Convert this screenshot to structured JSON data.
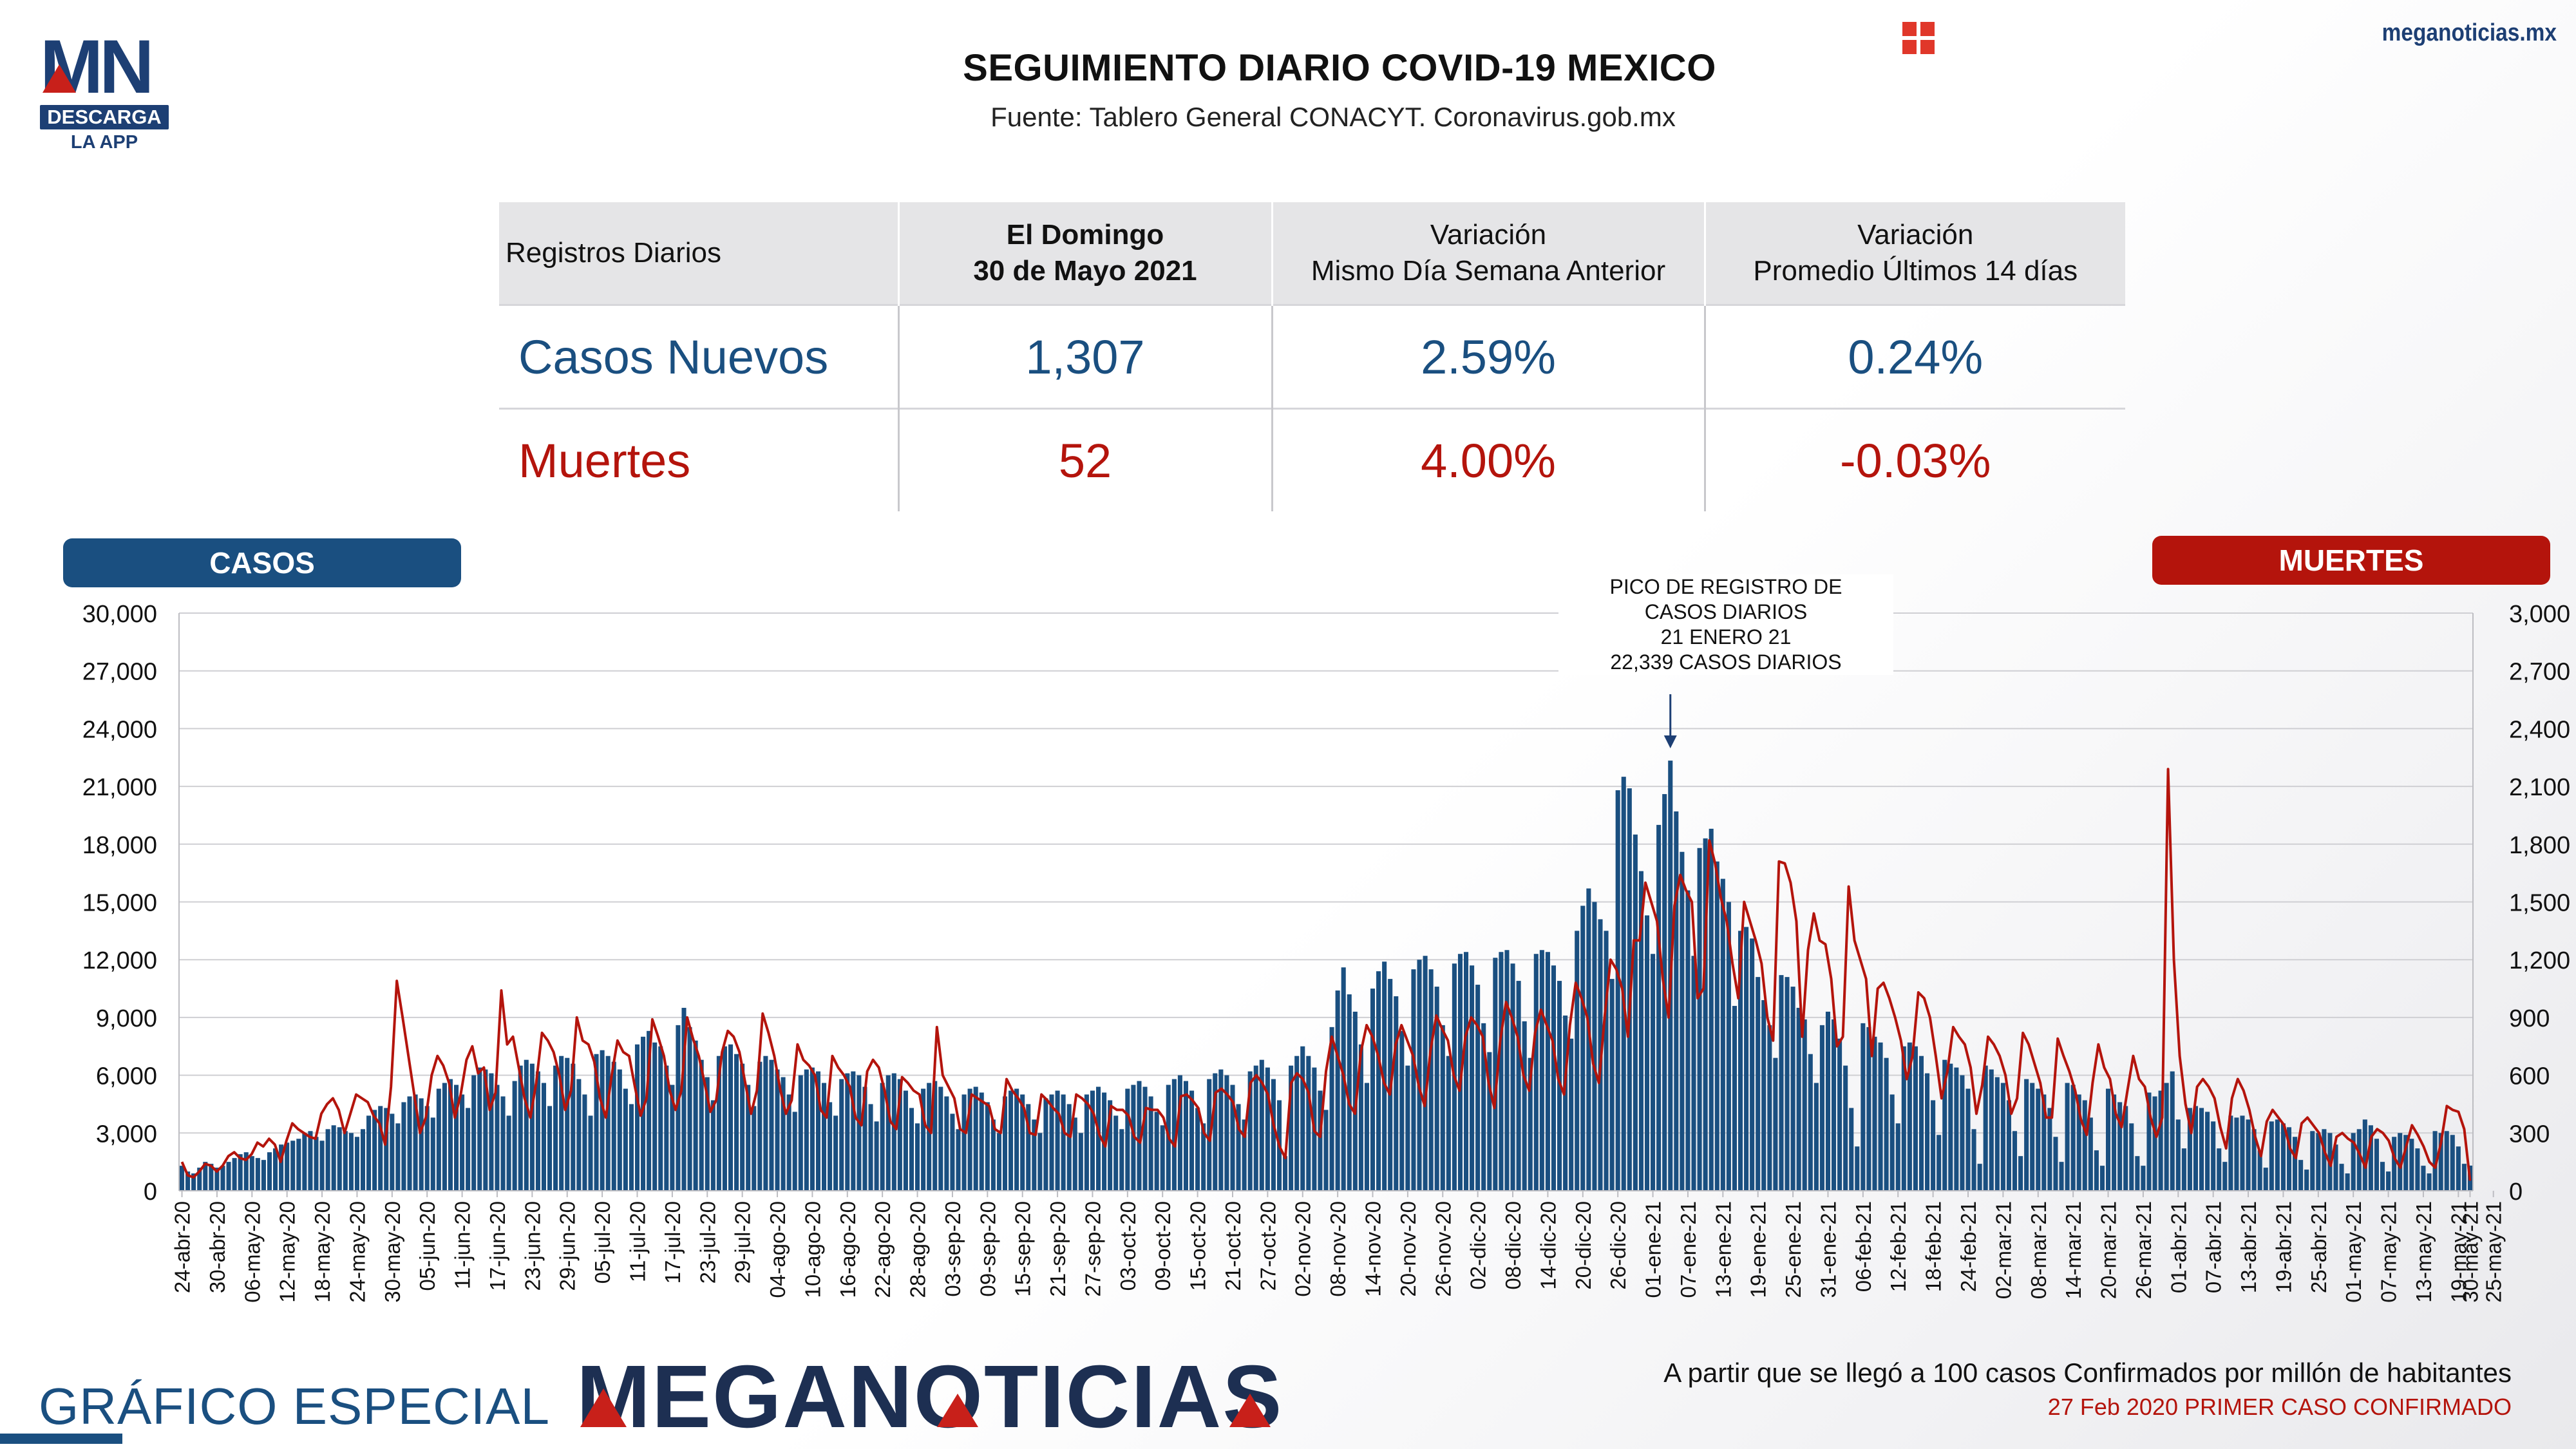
{
  "logo": {
    "mark": "MN",
    "band": "DESCARGA",
    "sub": "LA APP"
  },
  "title": "SEGUIMIENTO DIARIO COVID-19 MEXICO",
  "source": "Fuente: Tablero General CONACYT. Coronavirus.gob.mx",
  "site": {
    "url": "meganoticias.mx",
    "icon": "grid-icon"
  },
  "summary": {
    "header": {
      "label": "Registros Diarios",
      "day_line1": "El Domingo",
      "day_line2": "30 de Mayo 2021",
      "var_week_line1": "Variación",
      "var_week_line2": "Mismo Día Semana Anterior",
      "var_avg_line1": "Variación",
      "var_avg_line2": "Promedio Últimos 14 días"
    },
    "rows": [
      {
        "label": "Casos Nuevos",
        "value": "1,307",
        "var_week": "2.59%",
        "var_avg": "0.24%",
        "color": "#1a4f80"
      },
      {
        "label": "Muertes",
        "value": "52",
        "var_week": "4.00%",
        "var_avg": "-0.03%",
        "color": "#b4140c"
      }
    ]
  },
  "pills": {
    "left": "CASOS",
    "right": "MUERTES"
  },
  "annotation": {
    "line1": "PICO DE REGISTRO DE",
    "line2": "CASOS DIARIOS",
    "line3": "21 ENERO 21",
    "line4": "22,339 CASOS DIARIOS"
  },
  "chart_data": {
    "type": "bar",
    "title": "",
    "xlabel": "",
    "ylabel": "CASOS",
    "y2label": "MUERTES",
    "ylim": [
      0,
      30000
    ],
    "y2lim": [
      0,
      3000
    ],
    "yticks": [
      "0",
      "3,000",
      "6,000",
      "9,000",
      "12,000",
      "15,000",
      "18,000",
      "21,000",
      "24,000",
      "27,000",
      "30,000"
    ],
    "y2ticks": [
      "0",
      "300",
      "600",
      "900",
      "1,200",
      "1,500",
      "1,800",
      "2,100",
      "2,400",
      "2,700",
      "3,000"
    ],
    "grid": true,
    "bar_color": "#1a4f80",
    "line_color": "#b4140c",
    "start_date": "2020-04-24",
    "x_tick_labels": [
      "24-abr-20",
      "30-abr-20",
      "06-may-20",
      "12-may-20",
      "18-may-20",
      "24-may-20",
      "30-may-20",
      "05-jun-20",
      "11-jun-20",
      "17-jun-20",
      "23-jun-20",
      "29-jun-20",
      "05-jul-20",
      "11-jul-20",
      "17-jul-20",
      "23-jul-20",
      "29-jul-20",
      "04-ago-20",
      "10-ago-20",
      "16-ago-20",
      "22-ago-20",
      "28-ago-20",
      "03-sep-20",
      "09-sep-20",
      "15-sep-20",
      "21-sep-20",
      "27-sep-20",
      "03-oct-20",
      "09-oct-20",
      "15-oct-20",
      "21-oct-20",
      "27-oct-20",
      "02-nov-20",
      "08-nov-20",
      "14-nov-20",
      "20-nov-20",
      "26-nov-20",
      "02-dic-20",
      "08-dic-20",
      "14-dic-20",
      "20-dic-20",
      "26-dic-20",
      "01-ene-21",
      "07-ene-21",
      "13-ene-21",
      "19-ene-21",
      "25-ene-21",
      "31-ene-21",
      "06-feb-21",
      "12-feb-21",
      "18-feb-21",
      "24-feb-21",
      "02-mar-21",
      "08-mar-21",
      "14-mar-21",
      "20-mar-21",
      "26-mar-21",
      "01-abr-21",
      "07-abr-21",
      "13-abr-21",
      "19-abr-21",
      "25-abr-21",
      "01-may-21",
      "07-may-21",
      "13-may-21",
      "19-may-21",
      "25-may-21",
      "30-may-21"
    ],
    "series": [
      {
        "name": "CASOS",
        "axis": "left",
        "type": "bar",
        "values": [
          1300,
          1000,
          900,
          1200,
          1500,
          1400,
          1200,
          1300,
          1500,
          1700,
          1900,
          2000,
          1800,
          1700,
          1600,
          2000,
          2200,
          2400,
          2500,
          2600,
          2700,
          3000,
          3100,
          2800,
          2600,
          3200,
          3400,
          3300,
          3100,
          3000,
          2800,
          3200,
          3900,
          4200,
          4400,
          4300,
          4000,
          3500,
          4600,
          4900,
          5000,
          4800,
          4400,
          3800,
          5300,
          5600,
          5800,
          5500,
          5000,
          4300,
          6000,
          6400,
          6300,
          6100,
          5500,
          4900,
          3900,
          5700,
          6500,
          6800,
          6600,
          6200,
          5600,
          4400,
          6500,
          7000,
          6900,
          6600,
          5800,
          5000,
          3900,
          7100,
          7300,
          7000,
          6700,
          6300,
          5300,
          4500,
          7600,
          8000,
          8300,
          7700,
          7500,
          6500,
          5500,
          8600,
          9500,
          8500,
          7800,
          6800,
          5900,
          4700,
          7000,
          7500,
          7600,
          7100,
          6600,
          5500,
          4400,
          6700,
          7000,
          6800,
          6300,
          5900,
          5000,
          4100,
          6000,
          6300,
          6400,
          6200,
          5600,
          4600,
          3900,
          5800,
          6100,
          6200,
          6000,
          5400,
          4500,
          3600,
          5600,
          6000,
          6100,
          5800,
          5200,
          4300,
          3500,
          5300,
          5600,
          5700,
          5400,
          4900,
          4000,
          3200,
          5000,
          5300,
          5400,
          5100,
          4600,
          3700,
          3000,
          4900,
          5200,
          5300,
          5000,
          4500,
          3700,
          3000,
          4800,
          5000,
          5200,
          5000,
          4500,
          3800,
          3000,
          5000,
          5200,
          5400,
          5100,
          4700,
          3900,
          3200,
          5300,
          5500,
          5700,
          5400,
          4900,
          4100,
          3400,
          5500,
          5800,
          6000,
          5700,
          5200,
          4300,
          3500,
          5800,
          6100,
          6300,
          6000,
          5500,
          4500,
          3700,
          6200,
          6500,
          6800,
          6400,
          5800,
          4700,
          1800,
          6500,
          7000,
          7500,
          7000,
          6400,
          5200,
          4200,
          8500,
          10400,
          11600,
          10200,
          9300,
          7600,
          5600,
          10500,
          11400,
          11900,
          11000,
          10100,
          8300,
          6500,
          11500,
          12000,
          12200,
          11500,
          10600,
          8600,
          7000,
          11800,
          12300,
          12400,
          11700,
          10700,
          8700,
          7200,
          12100,
          12400,
          12500,
          11800,
          10900,
          8800,
          6900,
          12300,
          12500,
          12400,
          11700,
          10900,
          9100,
          7900,
          13500,
          14800,
          15700,
          15000,
          14100,
          13500,
          11000,
          20800,
          21500,
          20900,
          18500,
          16600,
          14300,
          12300,
          19000,
          20600,
          22339,
          19700,
          17600,
          15600,
          12200,
          17800,
          18300,
          18800,
          17100,
          16200,
          15000,
          9600,
          13500,
          13700,
          13100,
          11100,
          9900,
          8600,
          6900,
          11200,
          11100,
          10600,
          9500,
          8900,
          7100,
          5600,
          8600,
          9300,
          8900,
          7900,
          6500,
          4300,
          2300,
          8700,
          8500,
          8000,
          7700,
          6900,
          5000,
          3500,
          7500,
          7700,
          7500,
          7000,
          6100,
          4700,
          2900,
          6800,
          6600,
          6400,
          6000,
          5300,
          3200,
          1400,
          6500,
          6300,
          5900,
          5600,
          4700,
          3100,
          1800,
          5800,
          5600,
          5300,
          5000,
          4300,
          2800,
          1500,
          5600,
          5500,
          5000,
          4700,
          3800,
          2100,
          1300,
          5300,
          5000,
          4600,
          4400,
          3500,
          1800,
          1300,
          5100,
          4900,
          5200,
          5600,
          6200,
          3700,
          2200,
          4300,
          4400,
          4300,
          4100,
          3600,
          2200,
          1500,
          3900,
          3800,
          3900,
          3700,
          3200,
          2100,
          1200,
          3600,
          3700,
          3500,
          3300,
          2800,
          1600,
          1100,
          3100,
          3000,
          3200,
          3000,
          2400,
          1400,
          900,
          3000,
          3200,
          3700,
          3400,
          2700,
          1500,
          1000,
          2800,
          3000,
          2900,
          2700,
          2200,
          1300,
          900,
          3100,
          3000,
          3100,
          2900,
          2300,
          1400,
          1307
        ]
      },
      {
        "name": "MUERTES",
        "axis": "right",
        "type": "line",
        "values": [
          150,
          80,
          70,
          100,
          140,
          130,
          100,
          130,
          180,
          200,
          170,
          160,
          190,
          250,
          230,
          270,
          240,
          150,
          260,
          350,
          320,
          300,
          280,
          270,
          400,
          450,
          480,
          420,
          300,
          400,
          500,
          480,
          460,
          390,
          350,
          240,
          540,
          1090,
          900,
          700,
          500,
          300,
          380,
          600,
          700,
          650,
          560,
          380,
          500,
          680,
          750,
          610,
          640,
          420,
          510,
          1040,
          760,
          800,
          640,
          480,
          380,
          560,
          820,
          780,
          720,
          600,
          420,
          520,
          900,
          780,
          760,
          670,
          480,
          380,
          600,
          780,
          720,
          700,
          540,
          390,
          480,
          890,
          800,
          700,
          520,
          420,
          520,
          900,
          790,
          700,
          560,
          410,
          470,
          720,
          830,
          800,
          720,
          560,
          400,
          520,
          920,
          820,
          700,
          530,
          400,
          470,
          760,
          680,
          650,
          600,
          420,
          380,
          700,
          640,
          600,
          540,
          380,
          340,
          620,
          680,
          640,
          520,
          360,
          320,
          590,
          560,
          520,
          500,
          340,
          300,
          850,
          600,
          540,
          480,
          320,
          300,
          500,
          480,
          460,
          440,
          320,
          300,
          580,
          520,
          480,
          430,
          300,
          290,
          500,
          470,
          430,
          400,
          300,
          280,
          500,
          480,
          450,
          400,
          290,
          230,
          440,
          420,
          420,
          390,
          280,
          250,
          430,
          420,
          420,
          380,
          270,
          230,
          490,
          500,
          470,
          430,
          300,
          260,
          510,
          530,
          500,
          460,
          320,
          280,
          560,
          600,
          560,
          500,
          340,
          230,
          170,
          560,
          610,
          580,
          510,
          310,
          280,
          620,
          800,
          700,
          600,
          450,
          400,
          720,
          860,
          800,
          700,
          560,
          500,
          760,
          860,
          780,
          700,
          540,
          440,
          730,
          910,
          840,
          780,
          600,
          520,
          800,
          900,
          860,
          800,
          560,
          430,
          780,
          980,
          900,
          800,
          600,
          520,
          820,
          940,
          860,
          780,
          580,
          500,
          860,
          1080,
          1000,
          900,
          660,
          560,
          910,
          1200,
          1150,
          1050,
          800,
          1300,
          1300,
          1600,
          1500,
          1400,
          1100,
          900,
          1480,
          1640,
          1560,
          1500,
          1000,
          1050,
          1820,
          1700,
          1520,
          1400,
          1180,
          1000,
          1500,
          1400,
          1300,
          1180,
          900,
          780,
          1710,
          1700,
          1600,
          1400,
          800,
          1250,
          1440,
          1300,
          1280,
          1100,
          750,
          800,
          1580,
          1300,
          1200,
          1100,
          700,
          1050,
          1080,
          1000,
          900,
          780,
          580,
          700,
          1030,
          1000,
          900,
          700,
          480,
          620,
          850,
          800,
          760,
          640,
          400,
          550,
          800,
          760,
          700,
          600,
          400,
          480,
          820,
          760,
          660,
          560,
          380,
          380,
          790,
          700,
          620,
          520,
          370,
          290,
          560,
          760,
          640,
          580,
          400,
          330,
          520,
          700,
          580,
          540,
          380,
          280,
          380,
          2190,
          1200,
          700,
          450,
          300,
          540,
          580,
          540,
          480,
          330,
          220,
          480,
          580,
          520,
          420,
          280,
          180,
          360,
          420,
          380,
          340,
          220,
          170,
          350,
          380,
          340,
          300,
          200,
          130,
          280,
          300,
          270,
          250,
          190,
          120,
          280,
          320,
          300,
          260,
          170,
          120,
          230,
          340,
          290,
          230,
          150,
          120,
          250,
          440,
          420,
          410,
          320,
          52
        ]
      }
    ]
  },
  "footer": {
    "left": "GRÁFICO ESPECIAL",
    "brand": "MEGANOTICIAS",
    "note1": "A partir que se llegó a 100 casos Confirmados por millón de habitantes",
    "note2": "27 Feb 2020 PRIMER CASO CONFIRMADO"
  }
}
